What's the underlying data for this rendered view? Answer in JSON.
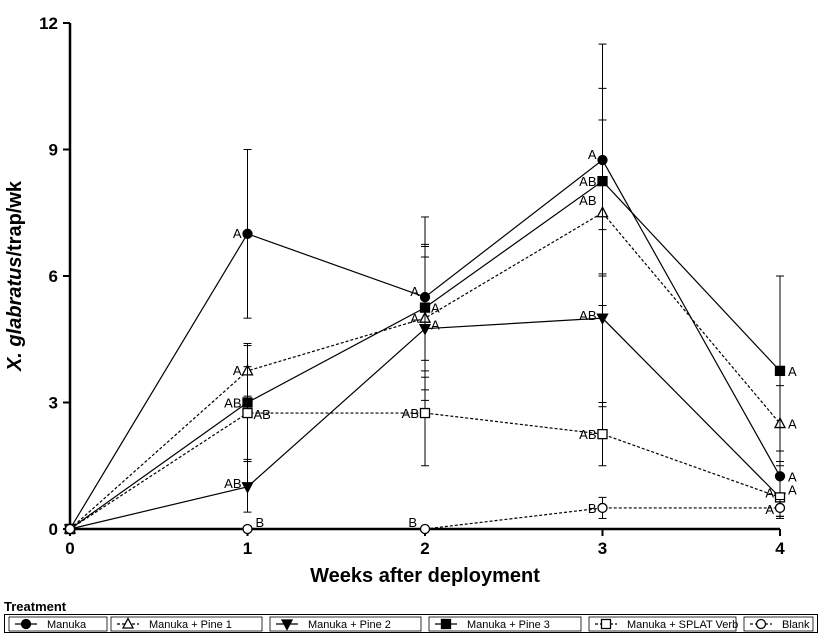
{
  "chart_data": {
    "type": "line",
    "x": [
      0,
      1,
      2,
      3,
      4
    ],
    "xlabel": "Weeks after deployment",
    "ylabel_italic": "X. glabratus",
    "ylabel_rest": "/trap/wk",
    "xticks": [
      "0",
      "1",
      "2",
      "3",
      "4"
    ],
    "yticks": [
      "0",
      "3",
      "6",
      "9",
      "12"
    ],
    "xlim": [
      0,
      4
    ],
    "ylim": [
      0,
      12
    ],
    "grid": false,
    "legend_title": "Treatment",
    "legend_position": "bottom",
    "series": [
      {
        "name": "Manuka",
        "marker": "circle-filled",
        "dash": "solid",
        "values": [
          0,
          7.0,
          5.5,
          8.75,
          1.25
        ],
        "errors": [
          0,
          2.0,
          1.9,
          2.75,
          0.6
        ],
        "letters": [
          "",
          "A",
          "A",
          "A",
          "A"
        ]
      },
      {
        "name": "Manuka + Pine  1",
        "marker": "triangle-up-open",
        "dash": "dashed",
        "values": [
          0,
          3.75,
          5.0,
          7.5,
          2.5
        ],
        "errors": [
          0,
          0.6,
          1.7,
          2.2,
          0.9
        ],
        "letters": [
          "",
          "A",
          "A",
          "AB",
          "A"
        ]
      },
      {
        "name": "Manuka + Pine  2",
        "marker": "triangle-down-filled",
        "dash": "solid",
        "values": [
          0,
          1.0,
          4.75,
          5.0,
          0.75
        ],
        "errors": [
          0,
          0.6,
          1.7,
          2.1,
          0.5
        ],
        "letters": [
          "",
          "AB",
          "A",
          "AB",
          "A"
        ]
      },
      {
        "name": "Manuka + Pine  3",
        "marker": "square-filled",
        "dash": "solid",
        "values": [
          0,
          3.0,
          5.25,
          8.25,
          3.75
        ],
        "errors": [
          0,
          1.4,
          1.5,
          2.2,
          2.25
        ],
        "letters": [
          "",
          "AB",
          "A",
          "AB",
          "A"
        ]
      },
      {
        "name": "Manuka + SPLAT Verb",
        "marker": "square-open",
        "dash": "dashed",
        "values": [
          0,
          2.75,
          2.75,
          2.25,
          0.75
        ],
        "errors": [
          0,
          1.1,
          1.25,
          0.75,
          0.45
        ],
        "letters": [
          "",
          "AB",
          "AB",
          "AB",
          "A"
        ]
      },
      {
        "name": "Blank",
        "marker": "circle-open",
        "dash": "dashed",
        "values": [
          0,
          0,
          0,
          0.5,
          0.5
        ],
        "errors": [
          0,
          0,
          0,
          0.25,
          0.2
        ],
        "letters": [
          "",
          "B",
          "B",
          "B",
          "A"
        ]
      }
    ]
  }
}
